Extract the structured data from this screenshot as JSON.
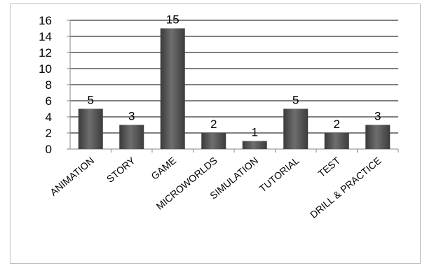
{
  "chart_data": {
    "type": "bar",
    "categories": [
      "ANIMATION",
      "STORY",
      "GAME",
      "MICROWORLDS",
      "SIMULATION",
      "TUTORIAL",
      "TEST",
      "DRILL & PRACTICE"
    ],
    "series": [
      {
        "values": [
          5,
          3,
          15,
          2,
          1,
          5,
          2,
          3
        ]
      }
    ],
    "data_labels": [
      "5",
      "3",
      "15",
      "2",
      "1",
      "5",
      "2",
      "3"
    ],
    "y_ticks": [
      "0",
      "2",
      "4",
      "6",
      "8",
      "10",
      "12",
      "14",
      "16"
    ],
    "ylim": [
      0,
      16
    ],
    "grid": true,
    "legend": "none",
    "title": "",
    "xlabel": "",
    "ylabel": "",
    "colors": {
      "bar_dark": "#3a3a3a",
      "bar_mid": "#6e6e6e",
      "bar_light": "#585858",
      "grid": "#000000",
      "axis": "#868686",
      "frame": "#bfbfbf"
    }
  }
}
